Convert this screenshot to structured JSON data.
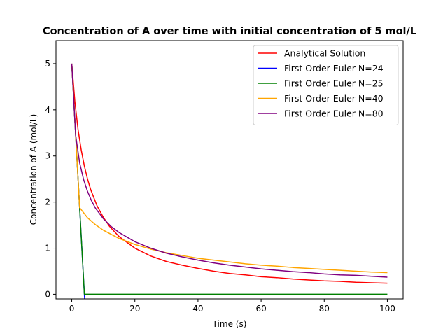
{
  "chart_data": {
    "type": "line",
    "title": "Concentration of A over time with initial concentration of 5 mol/L",
    "xlabel": "Time (s)",
    "ylabel": "Concentration of A (mol/L)",
    "xlim": [
      -5,
      105
    ],
    "ylim": [
      -0.1,
      5.5
    ],
    "xticks": [
      0,
      20,
      40,
      60,
      80,
      100
    ],
    "yticks": [
      0,
      1,
      2,
      3,
      4,
      5
    ],
    "grid": false,
    "legend_position": "top-right",
    "series": [
      {
        "name": "Analytical Solution",
        "color": "#ff0000",
        "x": [
          0,
          1,
          2,
          3,
          4,
          5,
          6,
          8,
          10,
          12,
          15,
          20,
          25,
          30,
          35,
          40,
          45,
          50,
          55,
          60,
          65,
          70,
          75,
          80,
          85,
          90,
          95,
          100
        ],
        "y": [
          5.0,
          4.17,
          3.57,
          3.13,
          2.78,
          2.5,
          2.27,
          1.92,
          1.67,
          1.47,
          1.25,
          1.0,
          0.83,
          0.71,
          0.63,
          0.56,
          0.5,
          0.45,
          0.42,
          0.38,
          0.36,
          0.33,
          0.31,
          0.29,
          0.28,
          0.26,
          0.25,
          0.24
        ]
      },
      {
        "name": "First Order Euler N=24",
        "color": "#0000ff",
        "x": [
          0,
          4.17
        ],
        "y": [
          5.0,
          -0.21
        ]
      },
      {
        "name": "First Order Euler N=25",
        "color": "#008000",
        "x": [
          0,
          4,
          8,
          12,
          16,
          20,
          24,
          28,
          32,
          36,
          40,
          44,
          48,
          52,
          56,
          60,
          64,
          68,
          72,
          76,
          80,
          84,
          88,
          92,
          96,
          100
        ],
        "y": [
          5.0,
          0.0,
          0.0,
          0.0,
          0.0,
          0.0,
          0.0,
          0.0,
          0.0,
          0.0,
          0.0,
          0.0,
          0.0,
          0.0,
          0.0,
          0.0,
          0.0,
          0.0,
          0.0,
          0.0,
          0.0,
          0.0,
          0.0,
          0.0,
          0.0,
          0.0
        ]
      },
      {
        "name": "First Order Euler N=40",
        "color": "#ffa500",
        "x": [
          0,
          2.5,
          5,
          7.5,
          10,
          15,
          20,
          25,
          30,
          35,
          40,
          45,
          50,
          55,
          60,
          65,
          70,
          75,
          80,
          85,
          90,
          95,
          100
        ],
        "y": [
          5.0,
          1.88,
          1.66,
          1.51,
          1.39,
          1.21,
          1.08,
          0.98,
          0.9,
          0.84,
          0.78,
          0.74,
          0.7,
          0.66,
          0.63,
          0.61,
          0.58,
          0.56,
          0.54,
          0.52,
          0.5,
          0.48,
          0.47
        ]
      },
      {
        "name": "First Order Euler N=80",
        "color": "#800080",
        "x": [
          0,
          1.25,
          2.5,
          3.75,
          5,
          6.25,
          7.5,
          10,
          12.5,
          15,
          20,
          25,
          30,
          35,
          40,
          45,
          50,
          55,
          60,
          65,
          70,
          75,
          80,
          85,
          90,
          95,
          100
        ],
        "y": [
          5.0,
          3.44,
          2.85,
          2.49,
          2.23,
          2.03,
          1.87,
          1.64,
          1.47,
          1.34,
          1.14,
          1.0,
          0.89,
          0.81,
          0.74,
          0.68,
          0.63,
          0.59,
          0.55,
          0.52,
          0.49,
          0.47,
          0.44,
          0.42,
          0.41,
          0.39,
          0.37
        ]
      }
    ]
  }
}
